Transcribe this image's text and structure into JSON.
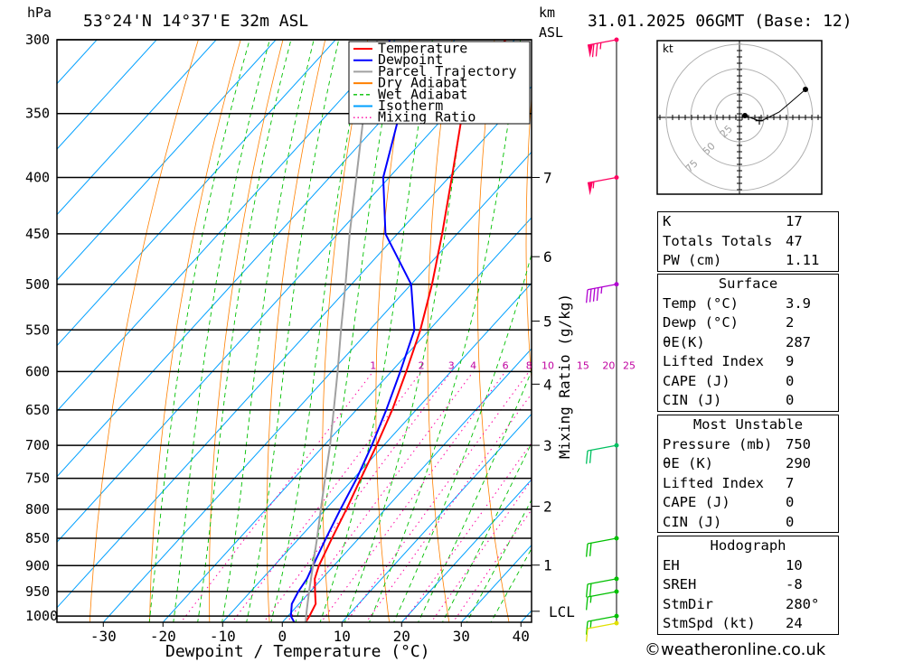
{
  "header": {
    "location": "53°24'N 14°37'E 32m ASL",
    "datetime": "31.01.2025 06GMT (Base: 12)",
    "hpa_unit": "hPa",
    "km_unit": "km",
    "asl_unit": "ASL"
  },
  "legend": {
    "items": [
      {
        "label": "Temperature",
        "color": "#ff0000",
        "style": "solid"
      },
      {
        "label": "Dewpoint",
        "color": "#0000ff",
        "style": "solid"
      },
      {
        "label": "Parcel Trajectory",
        "color": "#a0a0a0",
        "style": "solid"
      },
      {
        "label": "Dry Adiabat",
        "color": "#ff8000",
        "style": "solid"
      },
      {
        "label": "Wet Adiabat",
        "color": "#00c000",
        "style": "dashed"
      },
      {
        "label": "Isotherm",
        "color": "#00a0ff",
        "style": "solid"
      },
      {
        "label": "Mixing Ratio",
        "color": "#ff00a0",
        "style": "dotted"
      }
    ]
  },
  "hodograph": {
    "unit": "kt",
    "rings": [
      "25",
      "50",
      "75"
    ]
  },
  "indices": {
    "top": [
      {
        "label": "K",
        "value": "17"
      },
      {
        "label": "Totals Totals",
        "value": "47"
      },
      {
        "label": "PW (cm)",
        "value": "1.11"
      }
    ],
    "surface_title": "Surface",
    "surface": [
      {
        "label": "Temp (°C)",
        "value": "3.9"
      },
      {
        "label": "Dewp (°C)",
        "value": "2"
      },
      {
        "label": "θE(K)",
        "value": "287"
      },
      {
        "label": "Lifted Index",
        "value": "9"
      },
      {
        "label": "CAPE (J)",
        "value": "0"
      },
      {
        "label": "CIN (J)",
        "value": "0"
      }
    ],
    "mu_title": "Most Unstable",
    "most_unstable": [
      {
        "label": "Pressure (mb)",
        "value": "750"
      },
      {
        "label": "θE (K)",
        "value": "290"
      },
      {
        "label": "Lifted Index",
        "value": "7"
      },
      {
        "label": "CAPE (J)",
        "value": "0"
      },
      {
        "label": "CIN (J)",
        "value": "0"
      }
    ],
    "hodo_title": "Hodograph",
    "hodograph": [
      {
        "label": "EH",
        "value": "10"
      },
      {
        "label": "SREH",
        "value": "-8"
      },
      {
        "label": "StmDir",
        "value": "280°"
      },
      {
        "label": "StmSpd (kt)",
        "value": "24"
      }
    ]
  },
  "footer": "©weatheronline.co.uk",
  "chart_data": {
    "type": "line",
    "xlabel": "Dewpoint / Temperature (°C)",
    "y_left_label": "hPa",
    "y_right_label": "Mixing Ratio (g/kg)",
    "pressure_levels": [
      300,
      350,
      400,
      450,
      500,
      550,
      600,
      650,
      700,
      750,
      800,
      850,
      900,
      950,
      1000
    ],
    "x_ticks": [
      -30,
      -20,
      -10,
      0,
      10,
      20,
      30,
      40
    ],
    "height_km_ticks": [
      {
        "label": "7",
        "p": 400
      },
      {
        "label": "6",
        "p": 472
      },
      {
        "label": "5",
        "p": 540
      },
      {
        "label": "4",
        "p": 616
      },
      {
        "label": "3",
        "p": 700
      },
      {
        "label": "2",
        "p": 795
      },
      {
        "label": "1",
        "p": 899
      },
      {
        "label": "LCL",
        "p": 990
      }
    ],
    "mixing_ratio_labels": [
      "1",
      "2",
      "3",
      "4",
      "6",
      "8",
      "10",
      "15",
      "20",
      "25"
    ],
    "series": [
      {
        "name": "Temperature",
        "color": "#ff0000",
        "p": [
          1013,
          1000,
          975,
          950,
          925,
          900,
          850,
          800,
          750,
          700,
          650,
          600,
          550,
          500,
          450,
          400,
          350,
          330,
          300
        ],
        "t": [
          3.9,
          3.6,
          2.8,
          0.8,
          -1.2,
          -2.5,
          -4.5,
          -6.5,
          -8.8,
          -11.2,
          -14.0,
          -17.5,
          -21.5,
          -26.5,
          -32.5,
          -39.5,
          -47.5,
          -50.5,
          -51.5
        ]
      },
      {
        "name": "Dewpoint",
        "color": "#0000ff",
        "p": [
          1013,
          1000,
          975,
          950,
          925,
          900,
          850,
          800,
          750,
          700,
          650,
          600,
          550,
          500,
          450,
          400,
          350,
          300
        ],
        "t": [
          2.0,
          0.5,
          -1.2,
          -2.0,
          -2.5,
          -3.5,
          -5.5,
          -7.5,
          -9.5,
          -12.0,
          -15.0,
          -18.5,
          -22.5,
          -30.0,
          -42.0,
          -51.0,
          -58.0,
          -71.0
        ]
      },
      {
        "name": "Parcel Trajectory",
        "color": "#a0a0a0",
        "p": [
          1013,
          990,
          950,
          900,
          850,
          800,
          750,
          700,
          650,
          600,
          550,
          500,
          450,
          400,
          350,
          300
        ],
        "t": [
          3.9,
          2.4,
          -0.2,
          -3.5,
          -7.0,
          -10.8,
          -14.8,
          -19.0,
          -23.8,
          -29.0,
          -34.8,
          -41.0,
          -48.0,
          -55.5,
          -64.0,
          -73.0
        ]
      }
    ],
    "wind_barbs": [
      {
        "p": 300,
        "dir": 260,
        "kt": 75,
        "color": "#ff0060"
      },
      {
        "p": 400,
        "dir": 250,
        "kt": 55,
        "color": "#ff0060"
      },
      {
        "p": 500,
        "dir": 270,
        "kt": 45,
        "color": "#b000d0"
      },
      {
        "p": 700,
        "dir": 280,
        "kt": 20,
        "color": "#00c060"
      },
      {
        "p": 850,
        "dir": 290,
        "kt": 20,
        "color": "#00c000"
      },
      {
        "p": 925,
        "dir": 280,
        "kt": 20,
        "color": "#00c000"
      },
      {
        "p": 950,
        "dir": 275,
        "kt": 15,
        "color": "#00c000"
      },
      {
        "p": 1000,
        "dir": 260,
        "kt": 15,
        "color": "#00c000"
      },
      {
        "p": 1013,
        "dir": 250,
        "kt": 10,
        "color": "#e0e000"
      }
    ]
  }
}
